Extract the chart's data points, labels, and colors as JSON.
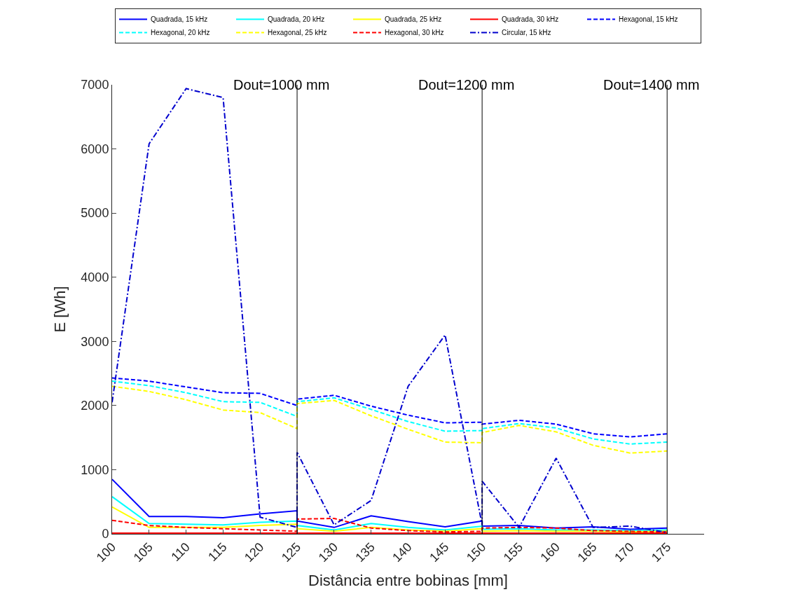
{
  "chart_data": {
    "type": "line",
    "xlabel": "Distância entre bobinas [mm]",
    "ylabel": "E [Wh]",
    "x": [
      100,
      105,
      110,
      115,
      120,
      125,
      125,
      130,
      135,
      140,
      145,
      150,
      150,
      155,
      160,
      165,
      170,
      175
    ],
    "xlim": [
      100,
      180
    ],
    "xticks": [
      100,
      105,
      110,
      115,
      120,
      125,
      130,
      135,
      140,
      145,
      150,
      155,
      160,
      165,
      170,
      175
    ],
    "ylim": [
      0,
      7000
    ],
    "yticks": [
      0,
      1000,
      2000,
      3000,
      4000,
      5000,
      6000,
      7000
    ],
    "legend": "top",
    "marker": "none",
    "annotations": [
      "Dout=1000 mm",
      "Dout=1200 mm",
      "Dout=1400 mm"
    ],
    "ref_lines": [
      {
        "axis": "x",
        "value": 125,
        "color": "#000000"
      },
      {
        "axis": "x",
        "value": 150,
        "color": "#000000"
      },
      {
        "axis": "x",
        "value": 175,
        "color": "#000000"
      }
    ],
    "series": [
      {
        "name": "Quadrada, 15 kHz",
        "color": "#0000ff",
        "line_style": "solid",
        "values": [
          850,
          270,
          270,
          250,
          310,
          360,
          200,
          100,
          280,
          190,
          110,
          200,
          120,
          130,
          90,
          110,
          70,
          90
        ]
      },
      {
        "name": "Quadrada, 20 kHz",
        "color": "#00ffff",
        "line_style": "solid",
        "values": [
          580,
          160,
          150,
          140,
          180,
          200,
          130,
          60,
          160,
          100,
          60,
          120,
          70,
          80,
          60,
          60,
          50,
          60
        ]
      },
      {
        "name": "Quadrada, 25 kHz",
        "color": "#ffff00",
        "line_style": "solid",
        "values": [
          420,
          100,
          100,
          100,
          130,
          150,
          80,
          40,
          100,
          60,
          40,
          80,
          40,
          50,
          40,
          40,
          30,
          40
        ]
      },
      {
        "name": "Quadrada, 30 kHz",
        "color": "#ff0000",
        "line_style": "solid",
        "values": [
          10,
          10,
          10,
          10,
          10,
          10,
          10,
          10,
          10,
          10,
          10,
          10,
          10,
          10,
          10,
          10,
          10,
          10
        ]
      },
      {
        "name": "Hexagonal, 15 kHz",
        "color": "#0000ff",
        "line_style": "dashed",
        "values": [
          2430,
          2380,
          2290,
          2200,
          2190,
          2000,
          2100,
          2160,
          1990,
          1850,
          1730,
          1740,
          1710,
          1770,
          1710,
          1560,
          1510,
          1560
        ]
      },
      {
        "name": "Hexagonal, 20 kHz",
        "color": "#00ffff",
        "line_style": "dashed",
        "values": [
          2380,
          2310,
          2200,
          2060,
          2050,
          1830,
          2060,
          2120,
          1940,
          1750,
          1600,
          1610,
          1640,
          1720,
          1650,
          1480,
          1400,
          1430
        ]
      },
      {
        "name": "Hexagonal, 25 kHz",
        "color": "#ffff00",
        "line_style": "dashed",
        "values": [
          2300,
          2220,
          2090,
          1930,
          1890,
          1640,
          2030,
          2080,
          1840,
          1630,
          1430,
          1420,
          1580,
          1690,
          1590,
          1380,
          1260,
          1290
        ]
      },
      {
        "name": "Hexagonal, 30 kHz",
        "color": "#ff0000",
        "line_style": "dashed",
        "values": [
          210,
          130,
          100,
          80,
          60,
          40,
          230,
          240,
          90,
          50,
          30,
          40,
          90,
          100,
          90,
          50,
          40,
          30
        ]
      },
      {
        "name": "Circular, 15 kHz",
        "color": "#0000cd",
        "line_style": "dashdot",
        "values": [
          2050,
          6080,
          6940,
          6800,
          260,
          100,
          1270,
          140,
          520,
          2300,
          3100,
          140,
          820,
          100,
          1180,
          100,
          120,
          20
        ]
      }
    ]
  }
}
